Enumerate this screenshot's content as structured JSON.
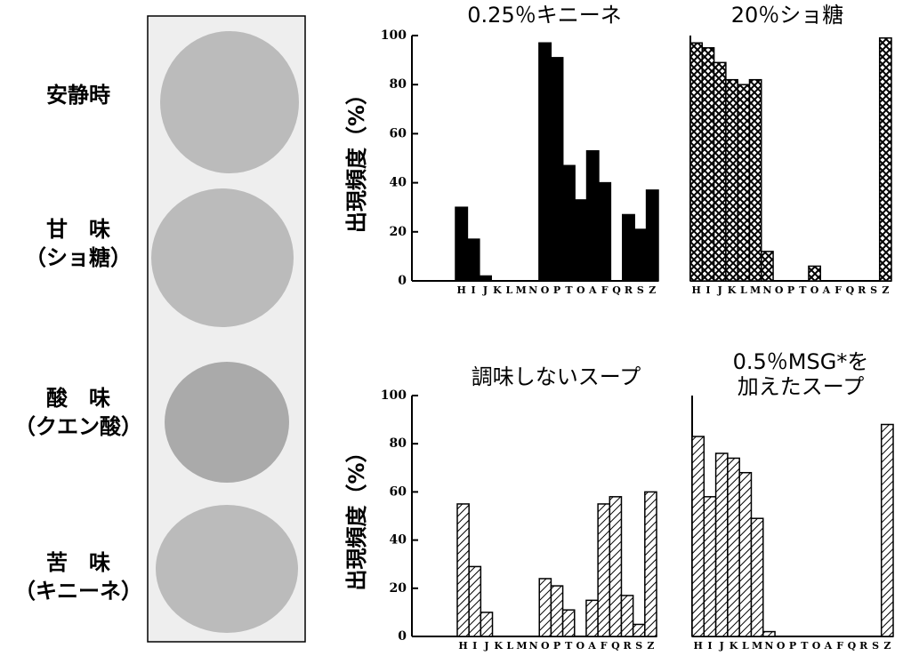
{
  "photo_labels": [
    [
      "安静時"
    ],
    [
      "甘　味",
      "（ショ糖）"
    ],
    [
      "酸　味",
      "（クエン酸）"
    ],
    [
      "苦　味",
      "（キニーネ）"
    ]
  ],
  "chart_data": [
    {
      "type": "bar",
      "title": [
        "0.25％キニーネ"
      ],
      "y_label": "出現頻度（%）",
      "pattern": "solid",
      "categories": [
        "H",
        "I",
        "J",
        "K",
        "L",
        "M",
        "N",
        "O",
        "P",
        "T",
        "O",
        "A",
        "F",
        "Q",
        "R",
        "S",
        "Z"
      ],
      "values": [
        30,
        17,
        2,
        0,
        0,
        0,
        0,
        97,
        91,
        47,
        33,
        53,
        40,
        0,
        27,
        21,
        37
      ],
      "ylim": [
        0,
        100
      ],
      "yticks": [
        0,
        20,
        40,
        60,
        80,
        100
      ]
    },
    {
      "type": "bar",
      "title": [
        "20％ショ糖"
      ],
      "pattern": "crosshatch",
      "categories": [
        "H",
        "I",
        "J",
        "K",
        "L",
        "M",
        "N",
        "O",
        "P",
        "T",
        "O",
        "A",
        "F",
        "Q",
        "R",
        "S",
        "Z"
      ],
      "values": [
        97,
        95,
        89,
        82,
        80,
        82,
        12,
        0,
        0,
        0,
        6,
        0,
        0,
        0,
        0,
        0,
        99
      ],
      "ylim": [
        0,
        100
      ]
    },
    {
      "type": "bar",
      "title": [
        "調味しないスープ"
      ],
      "y_label": "出現頻度（%）",
      "pattern": "hatch",
      "categories": [
        "H",
        "I",
        "J",
        "K",
        "L",
        "M",
        "N",
        "O",
        "P",
        "T",
        "O",
        "A",
        "F",
        "Q",
        "R",
        "S",
        "Z"
      ],
      "values": [
        55,
        29,
        10,
        0,
        0,
        0,
        0,
        24,
        21,
        11,
        0,
        15,
        55,
        58,
        17,
        5,
        60
      ],
      "ylim": [
        0,
        100
      ],
      "yticks": [
        0,
        20,
        40,
        60,
        80,
        100
      ]
    },
    {
      "type": "bar",
      "title": [
        "0.5％MSG*を",
        "加えたスープ"
      ],
      "pattern": "hatch",
      "categories": [
        "H",
        "I",
        "J",
        "K",
        "L",
        "M",
        "N",
        "O",
        "P",
        "T",
        "O",
        "A",
        "F",
        "Q",
        "R",
        "S",
        "Z"
      ],
      "values": [
        83,
        58,
        76,
        74,
        68,
        49,
        2,
        0,
        0,
        0,
        0,
        0,
        0,
        0,
        0,
        0,
        88
      ],
      "ylim": [
        0,
        100
      ]
    }
  ]
}
